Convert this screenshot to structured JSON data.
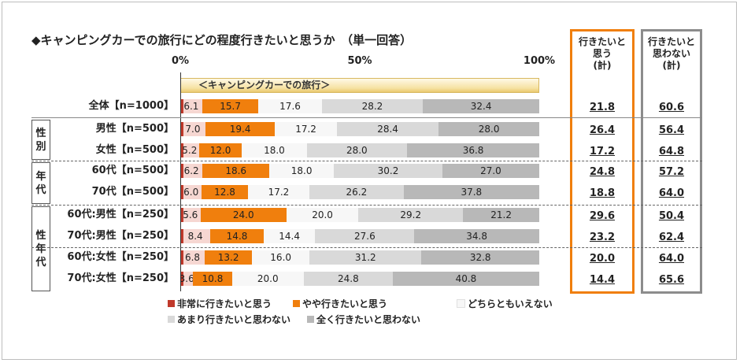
{
  "title": "◆キャンピングカーでの旅行にどの程度行きたいと思うか　（単一回答）",
  "chart_data": {
    "type": "bar",
    "orientation": "horizontal",
    "stacked": true,
    "band_label": "＜キャンピングカーでの旅行＞",
    "xlim": [
      0,
      100
    ],
    "x_ticks": [
      "0%",
      "50%",
      "100%"
    ],
    "categories": [
      "全体【n=1000】",
      "男性【n=500】",
      "女性【n=500】",
      "60代【n=500】",
      "70代【n=500】",
      "60代:男性【n=250】",
      "70代:男性【n=250】",
      "60代:女性【n=250】",
      "70代:女性【n=250】"
    ],
    "series": [
      {
        "name": "非常に行きたいと思う",
        "color": "#c0392b",
        "values": [
          6.1,
          7.0,
          5.2,
          6.2,
          6.0,
          5.6,
          8.4,
          6.8,
          3.6
        ]
      },
      {
        "name": "やや行きたいと思う",
        "color": "#f07f0d",
        "values": [
          15.7,
          19.4,
          12.0,
          18.6,
          12.8,
          24.0,
          14.8,
          13.2,
          10.8
        ]
      },
      {
        "name": "どちらともいえない",
        "color": "#f7f7f7",
        "values": [
          17.6,
          17.2,
          18.0,
          18.0,
          17.2,
          20.0,
          14.4,
          16.0,
          20.0
        ]
      },
      {
        "name": "あまり行きたいと思わない",
        "color": "#d9d9d9",
        "values": [
          28.2,
          28.4,
          28.0,
          30.2,
          26.2,
          29.2,
          27.6,
          31.2,
          24.8
        ]
      },
      {
        "name": "全く行きたいと思わない",
        "color": "#b8b8b8",
        "values": [
          32.4,
          28.0,
          36.8,
          27.0,
          37.8,
          21.2,
          34.8,
          32.8,
          40.8
        ]
      }
    ],
    "groups": [
      {
        "label": [
          "性",
          "別"
        ],
        "rows": [
          1,
          2
        ]
      },
      {
        "label": [
          "年",
          "代"
        ],
        "rows": [
          3,
          4
        ]
      },
      {
        "label": [
          "性",
          "年",
          "代"
        ],
        "rows": [
          5,
          6,
          7,
          8
        ]
      }
    ],
    "summary_columns": [
      {
        "header": "行きたいと\n思う\n(計)",
        "color": "#f07f0d",
        "values": [
          "21.8",
          "26.4",
          "17.2",
          "24.8",
          "18.8",
          "29.6",
          "23.2",
          "20.0",
          "14.4"
        ]
      },
      {
        "header": "行きたいと\n思わない\n(計)",
        "color": "#8c8c8c",
        "values": [
          "60.6",
          "56.4",
          "64.8",
          "57.2",
          "64.0",
          "50.4",
          "62.4",
          "64.0",
          "65.6"
        ]
      }
    ],
    "legend": [
      {
        "name": "非常に行きたいと思う",
        "color": "#c0392b"
      },
      {
        "name": "やや行きたいと思う",
        "color": "#f07f0d"
      },
      {
        "name": "どちらともいえない",
        "color": "#f7f7f7"
      },
      {
        "name": "あまり行きたいと思わない",
        "color": "#d9d9d9"
      },
      {
        "name": "全く行きたいと思わない",
        "color": "#b8b8b8"
      }
    ]
  }
}
